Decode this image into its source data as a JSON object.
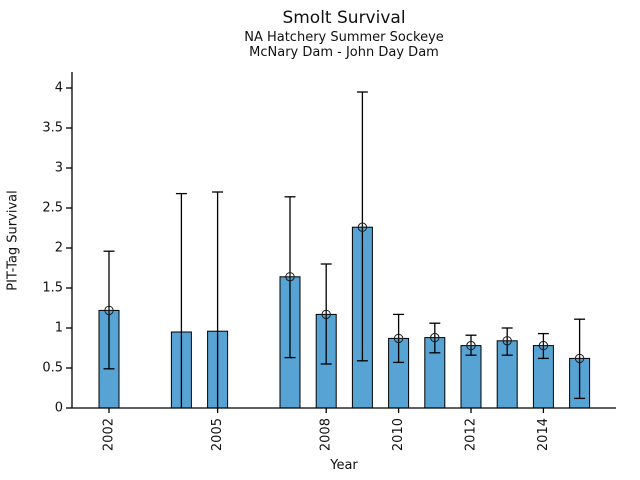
{
  "title": "Smolt Survival",
  "subtitle1": "NA Hatchery Summer Sockeye",
  "subtitle2": "McNary Dam - John Day Dam",
  "chart_data": {
    "type": "bar",
    "title": "Smolt Survival",
    "subtitles": [
      "NA Hatchery Summer Sockeye",
      "McNary Dam - John Day Dam"
    ],
    "xlabel": "Year",
    "ylabel": "PIT-Tag Survival",
    "ylim": [
      0,
      4.2
    ],
    "xrange": [
      2001,
      2016
    ],
    "yticks": [
      "0",
      "0.5",
      "1",
      "1.5",
      "2",
      "2.5",
      "3",
      "3.5",
      "4"
    ],
    "xticks": [
      "2002",
      "2005",
      "2008",
      "2010",
      "2012",
      "2014"
    ],
    "grid": false,
    "legend": "none",
    "bar_color": "#57A3D3",
    "bar_edge_color": "#000000",
    "errorbar_color": "#000000",
    "marker": "circle-plus",
    "bars": [
      {
        "year": 2002,
        "value": 1.22,
        "ci_low": 0.49,
        "ci_high": 1.96,
        "marker": true
      },
      {
        "year": 2004,
        "value": 0.95,
        "ci_low": 0.0,
        "ci_high": 2.68,
        "marker": false
      },
      {
        "year": 2005,
        "value": 0.96,
        "ci_low": 0.0,
        "ci_high": 2.7,
        "marker": false
      },
      {
        "year": 2007,
        "value": 1.64,
        "ci_low": 0.63,
        "ci_high": 2.64,
        "marker": true
      },
      {
        "year": 2008,
        "value": 1.17,
        "ci_low": 0.55,
        "ci_high": 1.8,
        "marker": true
      },
      {
        "year": 2009,
        "value": 2.26,
        "ci_low": 0.59,
        "ci_high": 3.95,
        "marker": true
      },
      {
        "year": 2010,
        "value": 0.87,
        "ci_low": 0.57,
        "ci_high": 1.17,
        "marker": true
      },
      {
        "year": 2011,
        "value": 0.88,
        "ci_low": 0.69,
        "ci_high": 1.06,
        "marker": true
      },
      {
        "year": 2012,
        "value": 0.78,
        "ci_low": 0.66,
        "ci_high": 0.91,
        "marker": true
      },
      {
        "year": 2013,
        "value": 0.84,
        "ci_low": 0.66,
        "ci_high": 1.0,
        "marker": true
      },
      {
        "year": 2014,
        "value": 0.78,
        "ci_low": 0.62,
        "ci_high": 0.93,
        "marker": true
      },
      {
        "year": 2015,
        "value": 0.62,
        "ci_low": 0.12,
        "ci_high": 1.11,
        "marker": true
      }
    ]
  }
}
